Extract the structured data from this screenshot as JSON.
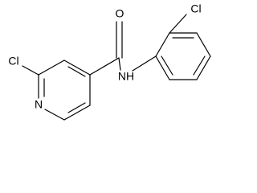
{
  "atoms": {
    "cl_left": "Cl",
    "n_ring": "N",
    "o": "O",
    "nh": "NH",
    "cl_right": "Cl"
  }
}
